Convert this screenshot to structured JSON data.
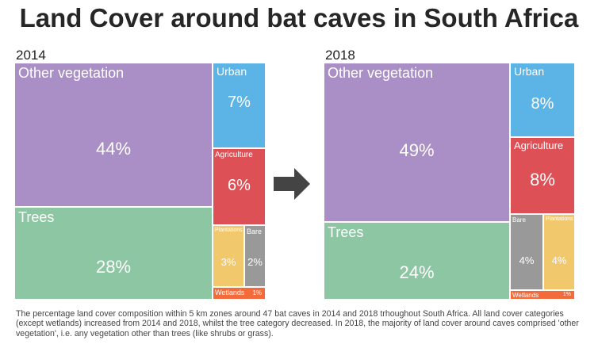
{
  "title": "Land Cover around bat caves in South Africa",
  "colors": {
    "Other vegetation": "#A98FC6",
    "Urban": "#5BB4E5",
    "Agriculture": "#DD5156",
    "Trees": "#8DC6A3",
    "Plantations": "#F1C96C",
    "Bare": "#999999",
    "Wetlands": "#F46B3B"
  },
  "chart_data": [
    {
      "type": "treemap",
      "title": "2014",
      "items": [
        {
          "category": "Other vegetation",
          "label": "Other vegetation",
          "value": 44,
          "value_label": "44%"
        },
        {
          "category": "Trees",
          "label": "Trees",
          "value": 28,
          "value_label": "28%"
        },
        {
          "category": "Urban",
          "label": "Urban",
          "value": 7,
          "value_label": "7%"
        },
        {
          "category": "Agriculture",
          "label": "Agriculture",
          "value": 6,
          "value_label": "6%"
        },
        {
          "category": "Plantations",
          "label": "Plantations",
          "value": 3,
          "value_label": "3%"
        },
        {
          "category": "Bare",
          "label": "Bare",
          "value": 2,
          "value_label": "2%"
        },
        {
          "category": "Wetlands",
          "label": "Wetlands",
          "value": 1,
          "value_label": "1%"
        }
      ]
    },
    {
      "type": "treemap",
      "title": "2018",
      "items": [
        {
          "category": "Other vegetation",
          "label": "Other vegetation",
          "value": 49,
          "value_label": "49%"
        },
        {
          "category": "Trees",
          "label": "Trees",
          "value": 24,
          "value_label": "24%"
        },
        {
          "category": "Urban",
          "label": "Urban",
          "value": 8,
          "value_label": "8%"
        },
        {
          "category": "Agriculture",
          "label": "Agriculture",
          "value": 8,
          "value_label": "8%"
        },
        {
          "category": "Bare",
          "label": "Bare",
          "value": 4,
          "value_label": "4%"
        },
        {
          "category": "Plantations",
          "label": "Plantations",
          "value": 4,
          "value_label": "4%"
        },
        {
          "category": "Wetlands",
          "label": "Wetlands",
          "value": 1,
          "value_label": "1%"
        }
      ]
    }
  ],
  "caption": "The percentage land cover composition within 5 km zones around 47 bat caves in 2014 and 2018 trhoughout South Africa. All land cover categories (except wetlands) increased from 2014 and 2018, whilst the tree category decreased. In 2018, the majority of land cover around caves comprised 'other vegetation', i.e. any vegetation other than trees (like shrubs or grass)."
}
